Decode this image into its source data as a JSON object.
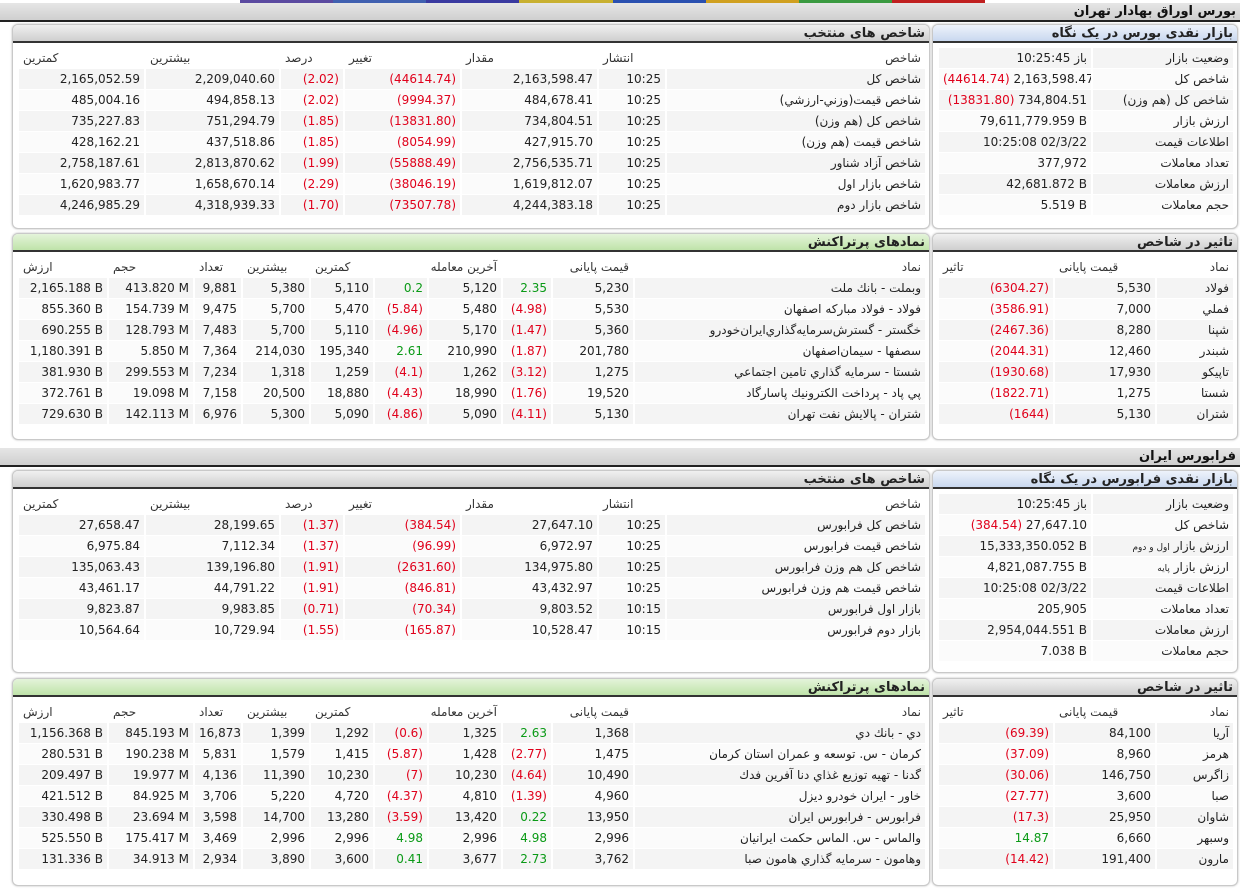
{
  "top_strip_colors": [
    "#5b4aa0",
    "#4060b0",
    "#3a3aa0",
    "#c8b030",
    "#2a50b0",
    "#d0a020",
    "#3a9a40",
    "#c02020"
  ],
  "tse": {
    "title": "بورس اوراق بهادار تهران",
    "glance": {
      "title": "بازار نقدی بورس در یک نگاه",
      "rows": [
        {
          "label": "وضعیت بازار",
          "value": "باز 10:25:45"
        },
        {
          "label": "شاخص کل",
          "value": "2,163,598.47",
          "change": "(44614.74)"
        },
        {
          "label": "شاخص کل (هم وزن)",
          "value": "734,804.51",
          "change": "(13831.80)"
        },
        {
          "label": "ارزش بازار",
          "value": "79,611,779.959 B"
        },
        {
          "label": "اطلاعات قیمت",
          "value": "10:25:08 02/3/22"
        },
        {
          "label": "تعداد معاملات",
          "value": "377,972"
        },
        {
          "label": "ارزش معاملات",
          "value": "42,681.872 B"
        },
        {
          "label": "حجم معاملات",
          "value": "5.519 B"
        }
      ]
    },
    "indices": {
      "title": "شاخص های منتخب",
      "columns": [
        "شاخص",
        "انتشار",
        "مقدار",
        "تغییر",
        "درصد",
        "بیشترین",
        "کمترین"
      ],
      "rows": [
        [
          "شاخص کل",
          "10:25",
          "2,163,598.47",
          "(44614.74)",
          "(2.02)",
          "2,209,040.60",
          "2,165,052.59"
        ],
        [
          "شاخص قيمت(وزني-ارزشي)",
          "10:25",
          "484,678.41",
          "(9994.37)",
          "(2.02)",
          "494,858.13",
          "485,004.16"
        ],
        [
          "شاخص کل (هم وزن)",
          "10:25",
          "734,804.51",
          "(13831.80)",
          "(1.85)",
          "751,294.79",
          "735,227.83"
        ],
        [
          "شاخص قیمت (هم وزن)",
          "10:25",
          "427,915.70",
          "(8054.99)",
          "(1.85)",
          "437,518.86",
          "428,162.21"
        ],
        [
          "شاخص آزاد شناور",
          "10:25",
          "2,756,535.71",
          "(55888.49)",
          "(1.99)",
          "2,813,870.62",
          "2,758,187.61"
        ],
        [
          "شاخص بازار اول",
          "10:25",
          "1,619,812.07",
          "(38046.19)",
          "(2.29)",
          "1,658,670.14",
          "1,620,983.77"
        ],
        [
          "شاخص بازار دوم",
          "10:25",
          "4,244,383.18",
          "(73507.78)",
          "(1.70)",
          "4,318,939.33",
          "4,246,985.29"
        ]
      ]
    },
    "impact": {
      "title": "تاثیر در شاخص",
      "columns": [
        "نماد",
        "قیمت پایانی",
        "تاثیر"
      ],
      "rows": [
        [
          "فولاد",
          "5,530",
          "(6304.27)"
        ],
        [
          "فملي",
          "7,000",
          "(3586.91)"
        ],
        [
          "شپنا",
          "8,280",
          "(2467.36)"
        ],
        [
          "شبندر",
          "12,460",
          "(2044.31)"
        ],
        [
          "تاپيکو",
          "17,930",
          "(1930.68)"
        ],
        [
          "شستا",
          "1,275",
          "(1822.71)"
        ],
        [
          "شتران",
          "5,130",
          "(1644)"
        ]
      ]
    },
    "active": {
      "title": "نمادهای پرتراکنش",
      "columns": [
        "نماد",
        "قیمت پایانی",
        "",
        "آخرین معامله",
        "",
        "کمترین",
        "بیشترین",
        "تعداد",
        "حجم",
        "ارزش"
      ],
      "rows": [
        [
          "وبملت - بانك ملت",
          "5,230",
          "2.35",
          "5,120",
          "0.2",
          "5,110",
          "5,380",
          "9,881",
          "413.820 M",
          "2,165.188 B"
        ],
        [
          "فولاد - فولاد مباركه اصفهان",
          "5,530",
          "(4.98)",
          "5,480",
          "(5.84)",
          "5,470",
          "5,700",
          "9,475",
          "154.739 M",
          "855.360 B"
        ],
        [
          "خگستر - گسترش‌سرمايه‌گذاري‌ايران‌خودرو",
          "5,360",
          "(1.47)",
          "5,170",
          "(4.96)",
          "5,110",
          "5,700",
          "7,483",
          "128.793 M",
          "690.255 B"
        ],
        [
          "سصفها - سيمان‌اصفهان",
          "201,780",
          "(1.87)",
          "210,990",
          "2.61",
          "195,340",
          "214,030",
          "7,364",
          "5.850 M",
          "1,180.391 B"
        ],
        [
          "شستا - سرمايه گذاري تامين اجتماعي",
          "1,275",
          "(3.12)",
          "1,262",
          "(4.1)",
          "1,259",
          "1,318",
          "7,234",
          "299.553 M",
          "381.930 B"
        ],
        [
          "پي پاد - پرداخت الكترونيك پاسارگاد",
          "19,520",
          "(1.76)",
          "18,990",
          "(4.43)",
          "18,880",
          "20,500",
          "7,158",
          "19.098 M",
          "372.761 B"
        ],
        [
          "شتران - پالايش نفت تهران",
          "5,130",
          "(4.11)",
          "5,090",
          "(4.86)",
          "5,090",
          "5,300",
          "6,976",
          "142.113 M",
          "729.630 B"
        ]
      ]
    }
  },
  "ifb": {
    "title": "فرابورس ایران",
    "glance": {
      "title": "بازار نقدی فرابورس در یک نگاه",
      "rows": [
        {
          "label": "وضعیت بازار",
          "value": "باز 10:25:45"
        },
        {
          "label": "شاخص کل",
          "value": "27,647.10",
          "change": "(384.54)"
        },
        {
          "label": "ارزش بازار",
          "label_small": "اول و دوم",
          "value": "15,333,350.052 B"
        },
        {
          "label": "ارزش بازار",
          "label_small": "پایه",
          "value": "4,821,087.755 B"
        },
        {
          "label": "اطلاعات قیمت",
          "value": "10:25:08 02/3/22"
        },
        {
          "label": "تعداد معاملات",
          "value": "205,905"
        },
        {
          "label": "ارزش معاملات",
          "value": "2,954,044.551 B"
        },
        {
          "label": "حجم معاملات",
          "value": "7.038 B"
        }
      ]
    },
    "indices": {
      "title": "شاخص های منتخب",
      "columns": [
        "شاخص",
        "انتشار",
        "مقدار",
        "تغییر",
        "درصد",
        "بیشترین",
        "کمترین"
      ],
      "rows": [
        [
          "شاخص کل فرابورس",
          "10:25",
          "27,647.10",
          "(384.54)",
          "(1.37)",
          "28,199.65",
          "27,658.47"
        ],
        [
          "شاخص قيمت فرابورس",
          "10:25",
          "6,972.97",
          "(96.99)",
          "(1.37)",
          "7,112.34",
          "6,975.84"
        ],
        [
          "شاخص کل هم وزن فرابورس",
          "10:25",
          "134,975.80",
          "(2631.60)",
          "(1.91)",
          "139,196.80",
          "135,063.43"
        ],
        [
          "شاخص قيمت هم وزن فرابورس",
          "10:25",
          "43,432.97",
          "(846.81)",
          "(1.91)",
          "44,791.22",
          "43,461.17"
        ],
        [
          "بازار اول فرابورس",
          "10:15",
          "9,803.52",
          "(70.34)",
          "(0.71)",
          "9,983.85",
          "9,823.87"
        ],
        [
          "بازار دوم فرابورس",
          "10:15",
          "10,528.47",
          "(165.87)",
          "(1.55)",
          "10,729.94",
          "10,564.64"
        ]
      ]
    },
    "impact": {
      "title": "تاثیر در شاخص",
      "columns": [
        "نماد",
        "قیمت پایانی",
        "تاثیر"
      ],
      "rows": [
        [
          "آريا",
          "84,100",
          "(69.39)"
        ],
        [
          "هرمز",
          "8,960",
          "(37.09)"
        ],
        [
          "زاگرس",
          "146,750",
          "(30.06)"
        ],
        [
          "صبا",
          "3,600",
          "(27.77)"
        ],
        [
          "شاوان",
          "25,950",
          "(17.3)"
        ],
        [
          "وسبهر",
          "6,660",
          "14.87"
        ],
        [
          "مارون",
          "191,400",
          "(14.42)"
        ]
      ]
    },
    "active": {
      "title": "نمادهای پرتراکنش",
      "columns": [
        "نماد",
        "قیمت پایانی",
        "",
        "آخرین معامله",
        "",
        "کمترین",
        "بیشترین",
        "تعداد",
        "حجم",
        "ارزش"
      ],
      "rows": [
        [
          "دي - بانك دي",
          "1,368",
          "2.63",
          "1,325",
          "(0.6)",
          "1,292",
          "1,399",
          "16,873",
          "845.193 M",
          "1,156.368 B"
        ],
        [
          "كرمان - س. توسعه و عمران استان كرمان",
          "1,475",
          "(2.77)",
          "1,428",
          "(5.87)",
          "1,415",
          "1,579",
          "5,831",
          "190.238 M",
          "280.531 B"
        ],
        [
          "گدنا - تهيه توزيع غذاي دنا آفرين فدك",
          "10,490",
          "(4.64)",
          "10,230",
          "(7)",
          "10,230",
          "11,390",
          "4,136",
          "19.977 M",
          "209.497 B"
        ],
        [
          "خاور - ايران خودرو ديزل",
          "4,960",
          "(1.39)",
          "4,810",
          "(4.37)",
          "4,720",
          "5,220",
          "3,706",
          "84.925 M",
          "421.512 B"
        ],
        [
          "فرابورس - فرابورس ايران",
          "13,950",
          "0.22",
          "13,420",
          "(3.59)",
          "13,280",
          "14,700",
          "3,598",
          "23.694 M",
          "330.498 B"
        ],
        [
          "والماس - س. الماس حكمت ايرانيان",
          "2,996",
          "4.98",
          "2,996",
          "4.98",
          "2,996",
          "2,996",
          "3,469",
          "175.417 M",
          "525.550 B"
        ],
        [
          "وهامون - سرمايه گذاري هامون صبا",
          "3,762",
          "2.73",
          "3,677",
          "0.41",
          "3,600",
          "3,890",
          "2,934",
          "34.913 M",
          "131.336 B"
        ]
      ]
    }
  }
}
